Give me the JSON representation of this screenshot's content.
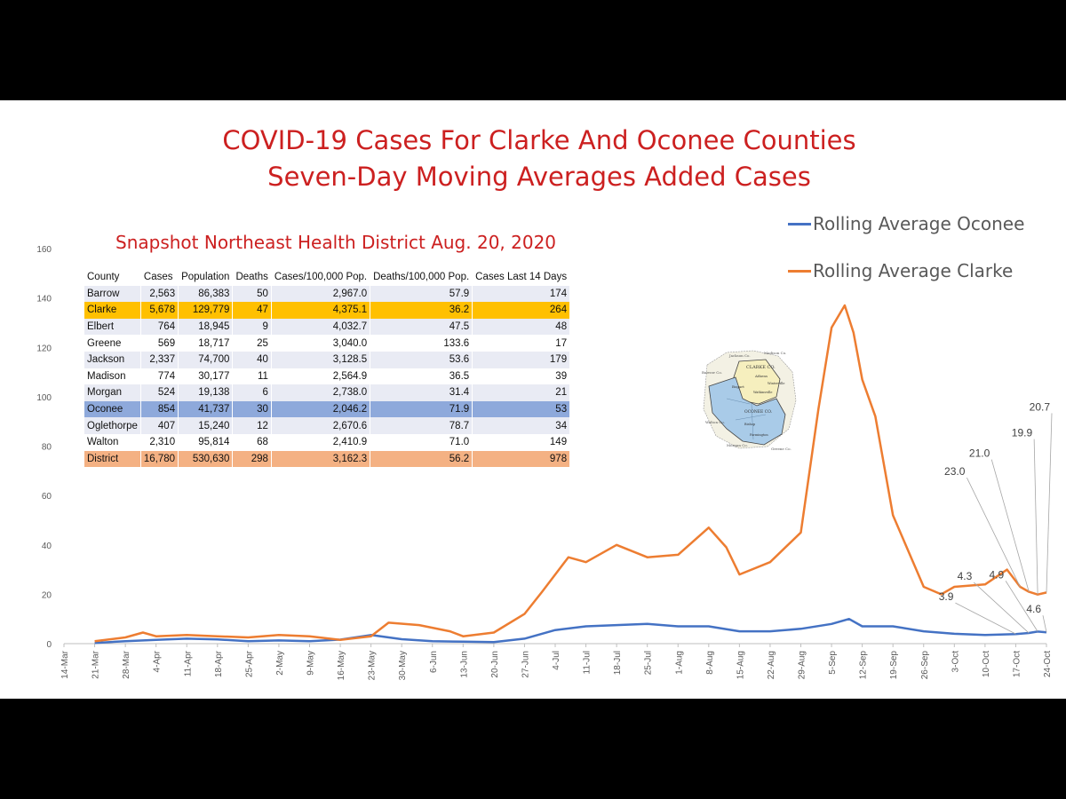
{
  "title_line1": "COVID-19 Cases For Clarke And Oconee Counties",
  "title_line2": "Seven-Day Moving Averages Added Cases",
  "legend": [
    {
      "label": "Rolling Average Oconee",
      "color": "#4472c4"
    },
    {
      "label": "Rolling Average Clarke",
      "color": "#ed7d31"
    }
  ],
  "snapshot": {
    "title": "Snapshot Northeast Health District Aug. 20, 2020",
    "headers": [
      "County",
      "Cases",
      "Population",
      "Deaths",
      "Cases/100,000 Pop.",
      "Deaths/100,000 Pop.",
      "Cases Last 14 Days"
    ],
    "rows": [
      {
        "cells": [
          "Barrow",
          "2,563",
          "86,383",
          "50",
          "2,967.0",
          "57.9",
          "174"
        ],
        "highlight": ""
      },
      {
        "cells": [
          "Clarke",
          "5,678",
          "129,779",
          "47",
          "4,375.1",
          "36.2",
          "264"
        ],
        "highlight": "clarke"
      },
      {
        "cells": [
          "Elbert",
          "764",
          "18,945",
          "9",
          "4,032.7",
          "47.5",
          "48"
        ],
        "highlight": ""
      },
      {
        "cells": [
          "Greene",
          "569",
          "18,717",
          "25",
          "3,040.0",
          "133.6",
          "17"
        ],
        "highlight": ""
      },
      {
        "cells": [
          "Jackson",
          "2,337",
          "74,700",
          "40",
          "3,128.5",
          "53.6",
          "179"
        ],
        "highlight": ""
      },
      {
        "cells": [
          "Madison",
          "774",
          "30,177",
          "11",
          "2,564.9",
          "36.5",
          "39"
        ],
        "highlight": ""
      },
      {
        "cells": [
          "Morgan",
          "524",
          "19,138",
          "6",
          "2,738.0",
          "31.4",
          "21"
        ],
        "highlight": ""
      },
      {
        "cells": [
          "Oconee",
          "854",
          "41,737",
          "30",
          "2,046.2",
          "71.9",
          "53"
        ],
        "highlight": "oconee"
      },
      {
        "cells": [
          "Oglethorpe",
          "407",
          "15,240",
          "12",
          "2,670.6",
          "78.7",
          "34"
        ],
        "highlight": ""
      },
      {
        "cells": [
          "Walton",
          "2,310",
          "95,814",
          "68",
          "2,410.9",
          "71.0",
          "149"
        ],
        "highlight": ""
      },
      {
        "cells": [
          "District",
          "16,780",
          "530,630",
          "298",
          "3,162.3",
          "56.2",
          "978"
        ],
        "highlight": "district"
      }
    ]
  },
  "map_image": {
    "icon": "district-county-map",
    "labels": [
      "Jackson Co.",
      "Madison Co.",
      "Barrow Co.",
      "CLARKE CO.",
      "Athens",
      "Winterville",
      "Bogart",
      "Watkinsville",
      "Walton Co.",
      "Morgan Co.",
      "Greene Co.",
      "OCONEE CO.",
      "Bishop",
      "Farmington"
    ]
  },
  "chart_data": {
    "type": "line",
    "ylim": [
      0,
      160
    ],
    "yticks": [
      0,
      20,
      40,
      60,
      80,
      100,
      120,
      140,
      160
    ],
    "xlim": [
      "2020-03-14",
      "2020-10-24"
    ],
    "xtick_labels": [
      "14-Mar",
      "21-Mar",
      "28-Mar",
      "4-Apr",
      "11-Apr",
      "18-Apr",
      "25-Apr",
      "2-May",
      "9-May",
      "16-May",
      "23-May",
      "30-May",
      "6-Jun",
      "13-Jun",
      "20-Jun",
      "27-Jun",
      "4-Jul",
      "11-Jul",
      "18-Jul",
      "25-Jul",
      "1-Aug",
      "8-Aug",
      "15-Aug",
      "22-Aug",
      "29-Aug",
      "5-Sep",
      "12-Sep",
      "19-Sep",
      "26-Sep",
      "3-Oct",
      "10-Oct",
      "17-Oct",
      "24-Oct"
    ],
    "series": [
      {
        "name": "Rolling Average Oconee",
        "color": "#4472c4",
        "points": [
          [
            "2020-03-21",
            0.3
          ],
          [
            "2020-03-28",
            1.0
          ],
          [
            "2020-04-04",
            1.5
          ],
          [
            "2020-04-11",
            2.0
          ],
          [
            "2020-04-18",
            1.7
          ],
          [
            "2020-04-25",
            1.0
          ],
          [
            "2020-05-02",
            1.3
          ],
          [
            "2020-05-09",
            1.0
          ],
          [
            "2020-05-16",
            1.6
          ],
          [
            "2020-05-23",
            3.5
          ],
          [
            "2020-05-30",
            1.8
          ],
          [
            "2020-06-06",
            1.0
          ],
          [
            "2020-06-13",
            0.8
          ],
          [
            "2020-06-20",
            0.6
          ],
          [
            "2020-06-27",
            2.0
          ],
          [
            "2020-07-04",
            5.5
          ],
          [
            "2020-07-11",
            7.0
          ],
          [
            "2020-07-18",
            7.5
          ],
          [
            "2020-07-25",
            8.0
          ],
          [
            "2020-08-01",
            7.0
          ],
          [
            "2020-08-08",
            7.0
          ],
          [
            "2020-08-15",
            5.0
          ],
          [
            "2020-08-22",
            5.0
          ],
          [
            "2020-08-29",
            6.0
          ],
          [
            "2020-09-05",
            8.0
          ],
          [
            "2020-09-09",
            10.0
          ],
          [
            "2020-09-12",
            7.0
          ],
          [
            "2020-09-19",
            7.0
          ],
          [
            "2020-09-26",
            5.0
          ],
          [
            "2020-10-03",
            4.0
          ],
          [
            "2020-10-10",
            3.5
          ],
          [
            "2020-10-17",
            3.9
          ],
          [
            "2020-10-20",
            4.3
          ],
          [
            "2020-10-22",
            4.9
          ],
          [
            "2020-10-24",
            4.6
          ]
        ]
      },
      {
        "name": "Rolling Average Clarke",
        "color": "#ed7d31",
        "points": [
          [
            "2020-03-21",
            1.0
          ],
          [
            "2020-03-28",
            2.5
          ],
          [
            "2020-04-01",
            4.5
          ],
          [
            "2020-04-04",
            3.0
          ],
          [
            "2020-04-11",
            3.5
          ],
          [
            "2020-04-18",
            3.0
          ],
          [
            "2020-04-25",
            2.5
          ],
          [
            "2020-05-02",
            3.5
          ],
          [
            "2020-05-09",
            3.0
          ],
          [
            "2020-05-16",
            1.5
          ],
          [
            "2020-05-23",
            3.0
          ],
          [
            "2020-05-27",
            8.5
          ],
          [
            "2020-06-03",
            7.5
          ],
          [
            "2020-06-10",
            5.0
          ],
          [
            "2020-06-13",
            3.0
          ],
          [
            "2020-06-20",
            4.5
          ],
          [
            "2020-06-27",
            12.0
          ],
          [
            "2020-07-01",
            21.0
          ],
          [
            "2020-07-07",
            35.0
          ],
          [
            "2020-07-11",
            33.0
          ],
          [
            "2020-07-18",
            40.0
          ],
          [
            "2020-07-25",
            35.0
          ],
          [
            "2020-08-01",
            36.0
          ],
          [
            "2020-08-08",
            47.0
          ],
          [
            "2020-08-12",
            39.0
          ],
          [
            "2020-08-15",
            28.0
          ],
          [
            "2020-08-22",
            33.0
          ],
          [
            "2020-08-29",
            45.0
          ],
          [
            "2020-09-02",
            95.0
          ],
          [
            "2020-09-05",
            128.0
          ],
          [
            "2020-09-08",
            137.0
          ],
          [
            "2020-09-10",
            126.0
          ],
          [
            "2020-09-12",
            107.0
          ],
          [
            "2020-09-15",
            92.0
          ],
          [
            "2020-09-19",
            52.0
          ],
          [
            "2020-09-26",
            23.0
          ],
          [
            "2020-09-30",
            20.0
          ],
          [
            "2020-10-03",
            23.0
          ],
          [
            "2020-10-10",
            24.0
          ],
          [
            "2020-10-15",
            30.0
          ],
          [
            "2020-10-18",
            23.0
          ],
          [
            "2020-10-20",
            21.0
          ],
          [
            "2020-10-22",
            19.9
          ],
          [
            "2020-10-24",
            20.7
          ]
        ]
      }
    ],
    "annotations": [
      {
        "text": "20.7",
        "series": "Rolling Average Clarke",
        "date": "2020-10-24"
      },
      {
        "text": "19.9",
        "series": "Rolling Average Clarke",
        "date": "2020-10-22"
      },
      {
        "text": "21.0",
        "series": "Rolling Average Clarke",
        "date": "2020-10-20"
      },
      {
        "text": "23.0",
        "series": "Rolling Average Clarke",
        "date": "2020-10-18"
      },
      {
        "text": "4.3",
        "series": "Rolling Average Oconee",
        "date": "2020-10-20"
      },
      {
        "text": "4.9",
        "series": "Rolling Average Oconee",
        "date": "2020-10-22"
      },
      {
        "text": "3.9",
        "series": "Rolling Average Oconee",
        "date": "2020-10-17"
      },
      {
        "text": "4.6",
        "series": "Rolling Average Oconee",
        "date": "2020-10-24"
      }
    ]
  }
}
